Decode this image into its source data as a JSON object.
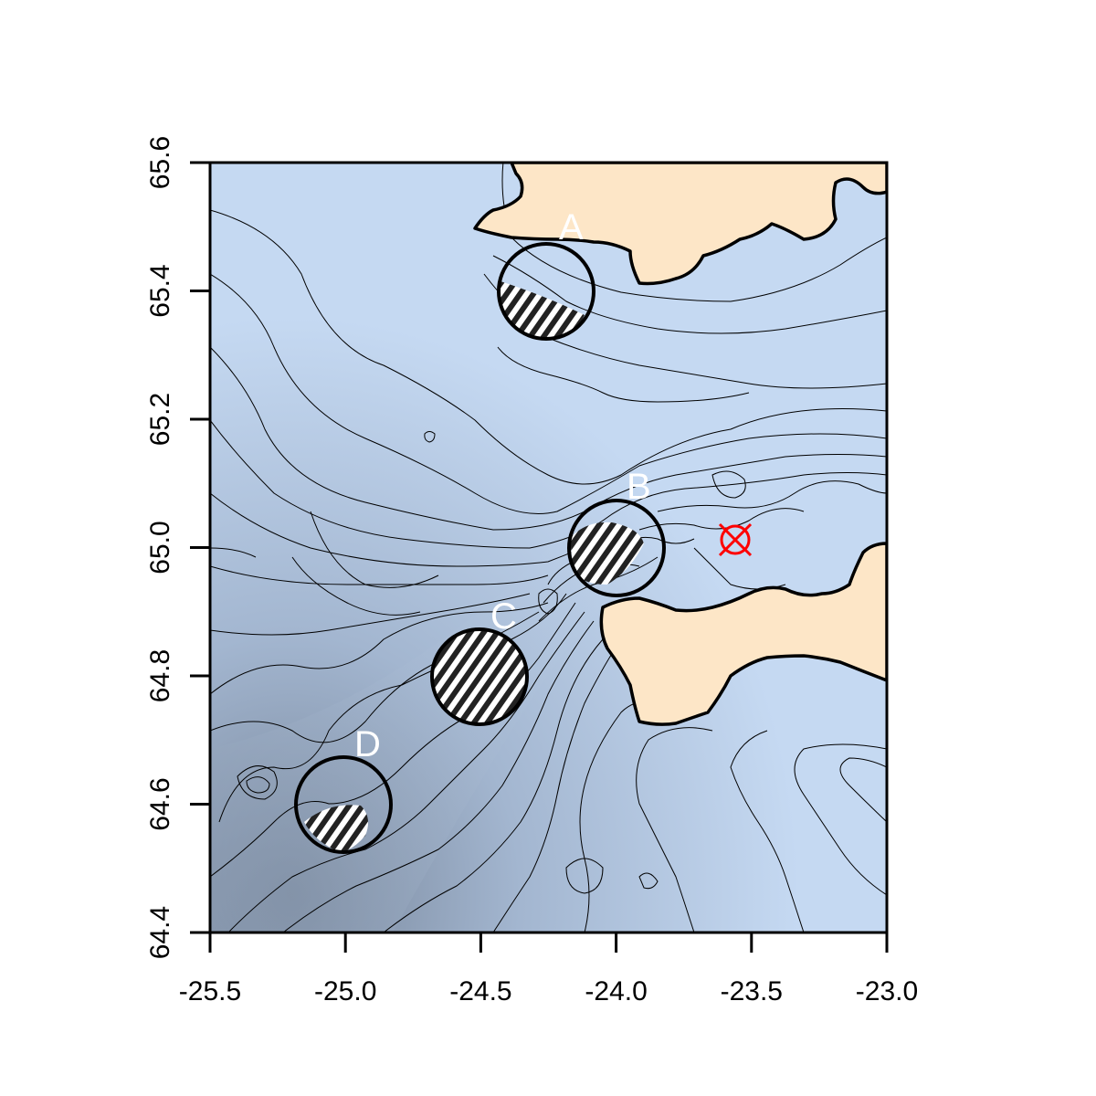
{
  "map": {
    "x_ticks": [
      "-25.5",
      "-25.0",
      "-24.5",
      "-24.0",
      "-23.5",
      "-23.0"
    ],
    "y_ticks": [
      "64.4",
      "64.6",
      "64.8",
      "65.0",
      "65.2",
      "65.4",
      "65.6"
    ],
    "x_range": [
      -25.5,
      -23.0
    ],
    "y_range": [
      64.4,
      65.6
    ],
    "colors": {
      "sea": "#c5d9f2",
      "deep_sea": "#7f8ea4",
      "land": "#fde6c7",
      "marker": "#ff0000"
    },
    "sites": [
      {
        "label": "A",
        "lon": -24.25,
        "lat": 65.4
      },
      {
        "label": "B",
        "lon": -24.0,
        "lat": 65.0
      },
      {
        "label": "C",
        "lon": -24.5,
        "lat": 64.8
      },
      {
        "label": "D",
        "lon": -25.0,
        "lat": 64.6
      }
    ],
    "marker": {
      "lon": -23.55,
      "lat": 65.01,
      "icon": "crossed-circle-icon"
    }
  }
}
